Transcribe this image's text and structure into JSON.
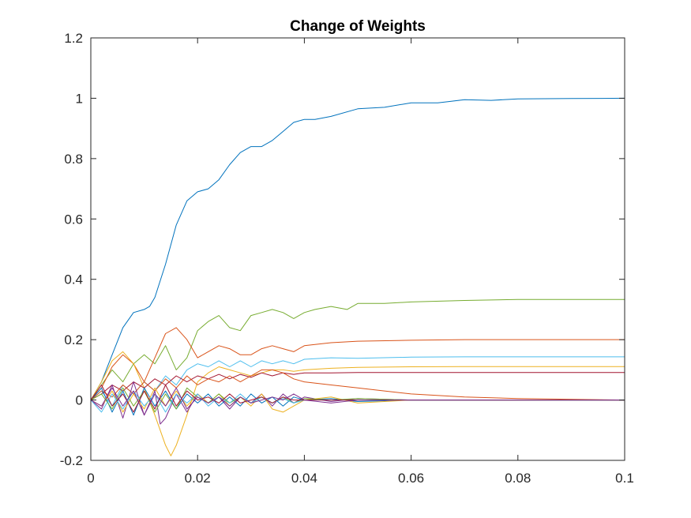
{
  "chart_data": {
    "type": "line",
    "title": "Change of Weights",
    "xlabel": "",
    "ylabel": "",
    "xlim": [
      0,
      0.1
    ],
    "ylim": [
      -0.2,
      1.2
    ],
    "x_ticks": [
      0,
      0.02,
      0.04,
      0.06,
      0.08,
      0.1
    ],
    "x_tick_labels": [
      "0",
      "0.02",
      "0.04",
      "0.06",
      "0.08",
      "0.1"
    ],
    "y_ticks": [
      -0.2,
      0,
      0.2,
      0.4,
      0.6,
      0.8,
      1,
      1.2
    ],
    "y_tick_labels": [
      "-0.2",
      "0",
      "0.2",
      "0.4",
      "0.6",
      "0.8",
      "1",
      "1.2"
    ],
    "grid": false,
    "legend": "none",
    "series": [
      {
        "color": "#0072BD",
        "x": [
          0,
          0.002,
          0.004,
          0.006,
          0.008,
          0.01,
          0.011,
          0.012,
          0.014,
          0.016,
          0.018,
          0.02,
          0.022,
          0.024,
          0.026,
          0.028,
          0.03,
          0.032,
          0.034,
          0.036,
          0.038,
          0.04,
          0.042,
          0.045,
          0.05,
          0.055,
          0.06,
          0.065,
          0.07,
          0.075,
          0.08,
          0.09,
          0.1
        ],
        "y": [
          0,
          0.06,
          0.15,
          0.24,
          0.29,
          0.3,
          0.31,
          0.34,
          0.45,
          0.58,
          0.66,
          0.69,
          0.7,
          0.73,
          0.78,
          0.82,
          0.84,
          0.84,
          0.86,
          0.89,
          0.92,
          0.93,
          0.93,
          0.94,
          0.965,
          0.97,
          0.985,
          0.985,
          0.995,
          0.993,
          0.998,
          0.999,
          1.0
        ]
      },
      {
        "color": "#77AC30",
        "x": [
          0,
          0.002,
          0.004,
          0.006,
          0.008,
          0.01,
          0.012,
          0.014,
          0.016,
          0.018,
          0.02,
          0.022,
          0.024,
          0.026,
          0.028,
          0.03,
          0.032,
          0.034,
          0.036,
          0.038,
          0.04,
          0.042,
          0.045,
          0.048,
          0.05,
          0.055,
          0.06,
          0.07,
          0.08,
          0.09,
          0.1
        ],
        "y": [
          0,
          0.05,
          0.1,
          0.06,
          0.12,
          0.15,
          0.12,
          0.18,
          0.1,
          0.14,
          0.23,
          0.26,
          0.28,
          0.24,
          0.23,
          0.28,
          0.29,
          0.3,
          0.29,
          0.27,
          0.29,
          0.3,
          0.31,
          0.3,
          0.32,
          0.32,
          0.325,
          0.33,
          0.333,
          0.333,
          0.333
        ]
      },
      {
        "color": "#D95319",
        "x": [
          0,
          0.002,
          0.004,
          0.006,
          0.008,
          0.01,
          0.012,
          0.014,
          0.016,
          0.018,
          0.02,
          0.022,
          0.024,
          0.026,
          0.028,
          0.03,
          0.032,
          0.034,
          0.036,
          0.038,
          0.04,
          0.045,
          0.05,
          0.06,
          0.07,
          0.08,
          0.1
        ],
        "y": [
          0,
          0.04,
          0.11,
          0.15,
          0.12,
          0.06,
          0.14,
          0.22,
          0.24,
          0.2,
          0.14,
          0.16,
          0.18,
          0.17,
          0.15,
          0.15,
          0.17,
          0.18,
          0.17,
          0.16,
          0.18,
          0.19,
          0.195,
          0.198,
          0.2,
          0.2,
          0.2
        ]
      },
      {
        "color": "#4DBEEE",
        "x": [
          0,
          0.002,
          0.004,
          0.006,
          0.008,
          0.01,
          0.012,
          0.014,
          0.016,
          0.018,
          0.02,
          0.022,
          0.024,
          0.026,
          0.028,
          0.03,
          0.032,
          0.034,
          0.036,
          0.038,
          0.04,
          0.045,
          0.05,
          0.06,
          0.07,
          0.08,
          0.1
        ],
        "y": [
          0,
          0.03,
          -0.02,
          0.05,
          0.02,
          0.06,
          0.03,
          0.08,
          0.05,
          0.1,
          0.12,
          0.11,
          0.13,
          0.11,
          0.13,
          0.11,
          0.13,
          0.12,
          0.13,
          0.12,
          0.135,
          0.14,
          0.138,
          0.142,
          0.143,
          0.143,
          0.143
        ]
      },
      {
        "color": "#EDB120",
        "x": [
          0,
          0.002,
          0.004,
          0.006,
          0.008,
          0.01,
          0.012,
          0.014,
          0.015,
          0.016,
          0.018,
          0.02,
          0.022,
          0.024,
          0.026,
          0.028,
          0.03,
          0.032,
          0.034,
          0.036,
          0.038,
          0.04,
          0.045,
          0.05,
          0.06,
          0.07,
          0.08,
          0.1
        ],
        "y": [
          0,
          0.06,
          0.13,
          0.16,
          0.12,
          0.04,
          -0.05,
          -0.15,
          -0.185,
          -0.15,
          -0.05,
          0.06,
          0.09,
          0.11,
          0.1,
          0.09,
          0.08,
          0.09,
          0.1,
          0.1,
          0.095,
          0.1,
          0.105,
          0.108,
          0.11,
          0.111,
          0.111,
          0.111
        ]
      },
      {
        "color": "#A2142F",
        "x": [
          0,
          0.002,
          0.004,
          0.006,
          0.008,
          0.01,
          0.012,
          0.014,
          0.016,
          0.018,
          0.02,
          0.022,
          0.024,
          0.026,
          0.028,
          0.03,
          0.032,
          0.034,
          0.036,
          0.038,
          0.04,
          0.045,
          0.05,
          0.06,
          0.07,
          0.08,
          0.1
        ],
        "y": [
          0,
          0.02,
          0.05,
          0.03,
          0.06,
          0.04,
          0.07,
          0.05,
          0.08,
          0.06,
          0.08,
          0.07,
          0.085,
          0.07,
          0.085,
          0.075,
          0.09,
          0.08,
          0.09,
          0.085,
          0.09,
          0.09,
          0.091,
          0.091,
          0.091,
          0.091,
          0.091
        ]
      },
      {
        "color": "#D95319",
        "x": [
          0,
          0.002,
          0.004,
          0.006,
          0.008,
          0.01,
          0.012,
          0.014,
          0.016,
          0.018,
          0.02,
          0.022,
          0.024,
          0.026,
          0.028,
          0.03,
          0.032,
          0.034,
          0.036,
          0.038,
          0.04,
          0.045,
          0.05,
          0.055,
          0.06,
          0.07,
          0.08,
          0.1
        ],
        "y": [
          0,
          0.03,
          0.01,
          0.05,
          0.02,
          0.06,
          0.03,
          0.07,
          0.04,
          0.08,
          0.05,
          0.07,
          0.06,
          0.08,
          0.06,
          0.08,
          0.1,
          0.1,
          0.09,
          0.07,
          0.06,
          0.05,
          0.04,
          0.03,
          0.02,
          0.01,
          0.005,
          0.0
        ]
      },
      {
        "color": "#7E2F8E",
        "x": [
          0,
          0.002,
          0.004,
          0.006,
          0.008,
          0.01,
          0.012,
          0.013,
          0.014,
          0.016,
          0.018,
          0.02,
          0.022,
          0.024,
          0.026,
          0.028,
          0.03,
          0.032,
          0.034,
          0.036,
          0.038,
          0.04,
          0.045,
          0.05,
          0.06,
          0.07,
          0.08,
          0.1
        ],
        "y": [
          0,
          -0.03,
          0.05,
          -0.06,
          0.06,
          -0.05,
          0.03,
          -0.08,
          -0.06,
          0.02,
          -0.04,
          0.02,
          -0.01,
          0.01,
          -0.03,
          0.01,
          -0.01,
          0.02,
          -0.02,
          0.02,
          -0.01,
          0.01,
          -0.005,
          0.005,
          0.0,
          0.0,
          0.0,
          0.0
        ]
      },
      {
        "color": "#0072BD",
        "x": [
          0,
          0.002,
          0.004,
          0.006,
          0.008,
          0.01,
          0.012,
          0.014,
          0.016,
          0.018,
          0.02,
          0.022,
          0.024,
          0.026,
          0.028,
          0.03,
          0.032,
          0.034,
          0.036,
          0.038,
          0.04,
          0.045,
          0.05,
          0.06,
          0.07,
          0.08,
          0.1
        ],
        "y": [
          0,
          0.04,
          -0.04,
          0.03,
          -0.05,
          0.04,
          -0.02,
          0.03,
          -0.03,
          0.02,
          -0.01,
          0.02,
          -0.02,
          0.01,
          -0.02,
          0.02,
          -0.01,
          0.01,
          -0.02,
          0.01,
          0.0,
          0.005,
          -0.005,
          0.0,
          0.0,
          0.0,
          0.0
        ]
      },
      {
        "color": "#EDB120",
        "x": [
          0,
          0.002,
          0.004,
          0.006,
          0.008,
          0.01,
          0.012,
          0.014,
          0.016,
          0.018,
          0.02,
          0.022,
          0.024,
          0.026,
          0.028,
          0.03,
          0.032,
          0.034,
          0.036,
          0.038,
          0.04,
          0.045,
          0.05,
          0.06,
          0.07,
          0.08,
          0.1
        ],
        "y": [
          0,
          -0.02,
          0.03,
          -0.04,
          0.02,
          -0.03,
          0.04,
          -0.02,
          0.03,
          -0.02,
          0.02,
          -0.01,
          0.02,
          -0.02,
          0.01,
          -0.02,
          0.02,
          -0.03,
          -0.04,
          -0.02,
          0.0,
          0.01,
          -0.01,
          0.0,
          0.0,
          0.0,
          0.0
        ]
      },
      {
        "color": "#77AC30",
        "x": [
          0,
          0.002,
          0.004,
          0.006,
          0.008,
          0.01,
          0.012,
          0.014,
          0.016,
          0.018,
          0.02,
          0.022,
          0.024,
          0.026,
          0.028,
          0.03,
          0.032,
          0.034,
          0.036,
          0.038,
          0.04,
          0.045,
          0.05,
          0.06,
          0.07,
          0.08,
          0.1
        ],
        "y": [
          0,
          0.02,
          -0.03,
          0.04,
          -0.02,
          0.03,
          -0.04,
          0.02,
          -0.03,
          0.04,
          0.01,
          -0.01,
          0.02,
          -0.01,
          0.01,
          -0.01,
          0.01,
          -0.01,
          0.01,
          -0.01,
          0.005,
          0.0,
          0.005,
          0.0,
          0.0,
          0.0,
          0.0
        ]
      },
      {
        "color": "#4DBEEE",
        "x": [
          0,
          0.002,
          0.004,
          0.006,
          0.008,
          0.01,
          0.012,
          0.014,
          0.016,
          0.018,
          0.02,
          0.022,
          0.024,
          0.026,
          0.028,
          0.03,
          0.032,
          0.034,
          0.036,
          0.038,
          0.04,
          0.045,
          0.05,
          0.06,
          0.07,
          0.08,
          0.1
        ],
        "y": [
          0,
          -0.04,
          0.02,
          -0.03,
          0.03,
          -0.02,
          0.02,
          -0.04,
          0.02,
          -0.01,
          0.02,
          -0.02,
          0.01,
          -0.01,
          0.02,
          -0.01,
          0.01,
          -0.01,
          0.005,
          -0.01,
          0.0,
          0.0,
          0.0,
          0.0,
          0.0,
          0.0,
          0.0
        ]
      },
      {
        "color": "#A2142F",
        "x": [
          0,
          0.002,
          0.004,
          0.006,
          0.008,
          0.01,
          0.012,
          0.014,
          0.016,
          0.018,
          0.02,
          0.022,
          0.024,
          0.026,
          0.028,
          0.03,
          0.032,
          0.034,
          0.036,
          0.038,
          0.04,
          0.045,
          0.05,
          0.06,
          0.07,
          0.08,
          0.1
        ],
        "y": [
          0,
          0.05,
          -0.02,
          0.02,
          -0.04,
          0.03,
          -0.03,
          0.05,
          -0.02,
          0.03,
          0.0,
          0.01,
          -0.01,
          0.02,
          -0.01,
          0.0,
          0.01,
          -0.01,
          0.01,
          0.0,
          0.0,
          0.0,
          0.0,
          0.0,
          0.0,
          0.0,
          0.0
        ]
      },
      {
        "color": "#7E2F8E",
        "x": [
          0,
          0.002,
          0.004,
          0.006,
          0.008,
          0.01,
          0.012,
          0.014,
          0.016,
          0.018,
          0.02,
          0.022,
          0.024,
          0.026,
          0.028,
          0.03,
          0.032,
          0.034,
          0.036,
          0.038,
          0.04,
          0.045,
          0.05,
          0.06,
          0.07,
          0.08,
          0.1
        ],
        "y": [
          0,
          -0.02,
          0.04,
          -0.02,
          0.03,
          -0.05,
          0.02,
          -0.02,
          0.04,
          -0.03,
          0.01,
          -0.01,
          0.01,
          -0.02,
          0.01,
          -0.01,
          0.0,
          0.01,
          0.0,
          0.02,
          0.0,
          -0.01,
          0.0,
          0.0,
          0.0,
          0.0,
          0.0
        ]
      }
    ]
  }
}
